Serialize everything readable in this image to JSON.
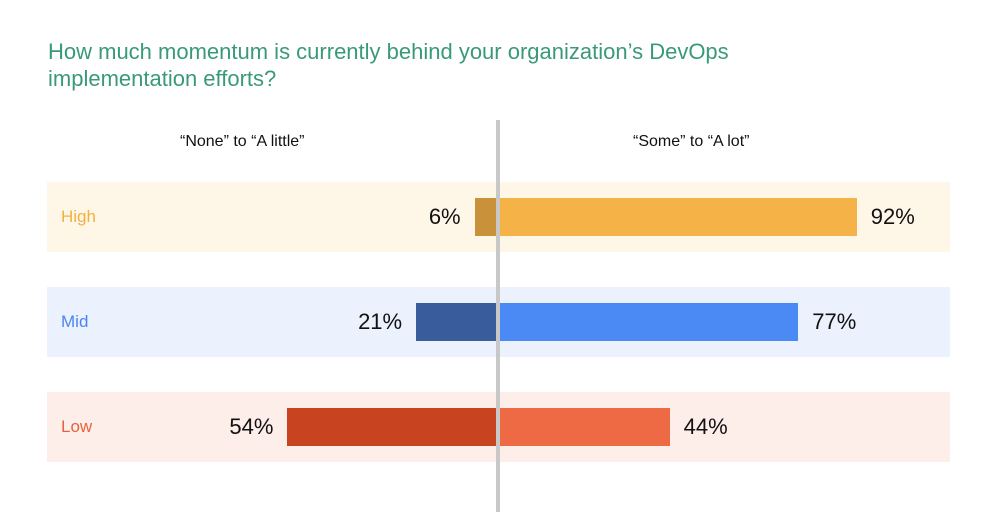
{
  "chart_data": {
    "type": "bar",
    "orientation": "horizontal-diverging",
    "title": "How much momentum is currently behind your organization’s DevOps implementation efforts?",
    "left_header": "“None” to “A little”",
    "right_header": "“Some” to “A lot”",
    "categories": [
      "High",
      "Mid",
      "Low"
    ],
    "series": [
      {
        "name": "“None” to “A little”",
        "values": [
          6,
          21,
          54
        ]
      },
      {
        "name": "“Some” to “A lot”",
        "values": [
          92,
          77,
          44
        ]
      }
    ],
    "value_labels_left": [
      "6%",
      "21%",
      "54%"
    ],
    "value_labels_right": [
      "92%",
      "77%",
      "44%"
    ],
    "colors": {
      "High": {
        "label": "#f2b13e",
        "bg": "#fef7e8",
        "left": "#c9913a",
        "right": "#f5b247"
      },
      "Mid": {
        "label": "#4a86f0",
        "bg": "#ebf1fd",
        "left": "#385c9c",
        "right": "#4b89f5"
      },
      "Low": {
        "label": "#e8613f",
        "bg": "#fdeeea",
        "left": "#c8431f",
        "right": "#ee6a45"
      }
    },
    "grid": false
  }
}
